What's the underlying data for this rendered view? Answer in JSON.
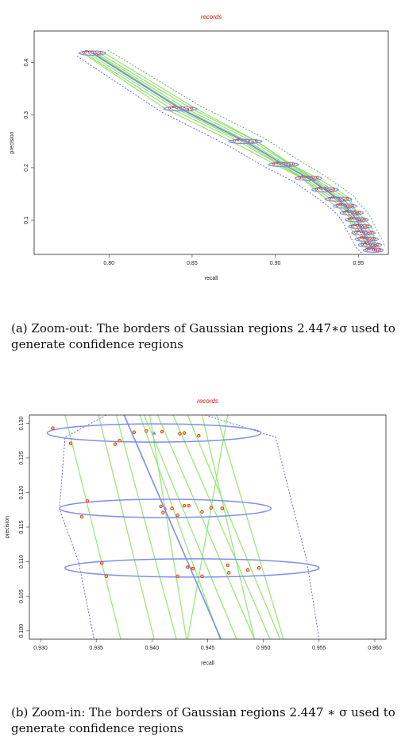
{
  "chart_data": [
    {
      "id": "zoom-out",
      "type": "line",
      "title": "records",
      "xlabel": "recall",
      "ylabel": "precision",
      "xlim": [
        0.755,
        0.968
      ],
      "ylim": [
        0.035,
        0.46
      ],
      "xticks": [
        "0.80",
        "0.85",
        "0.90",
        "0.95"
      ],
      "yticks": [
        "0.1",
        "0.2",
        "0.3",
        "0.4"
      ],
      "grid": false,
      "mean_curve": [
        [
          0.79,
          0.418
        ],
        [
          0.843,
          0.312
        ],
        [
          0.882,
          0.25
        ],
        [
          0.905,
          0.206
        ],
        [
          0.92,
          0.18
        ],
        [
          0.93,
          0.158
        ],
        [
          0.938,
          0.14
        ],
        [
          0.942,
          0.127
        ],
        [
          0.946,
          0.114
        ],
        [
          0.949,
          0.101
        ],
        [
          0.951,
          0.088
        ],
        [
          0.953,
          0.076
        ],
        [
          0.955,
          0.064
        ],
        [
          0.957,
          0.053
        ],
        [
          0.959,
          0.043
        ]
      ],
      "ellipse_half_width_recall": [
        0.008,
        0.01,
        0.01,
        0.009,
        0.008,
        0.008,
        0.008,
        0.007,
        0.007,
        0.007,
        0.007,
        0.007,
        0.007,
        0.007,
        0.006
      ]
    },
    {
      "id": "zoom-in",
      "type": "line",
      "title": "records",
      "xlabel": "recall",
      "ylabel": "precision",
      "xlim": [
        0.929,
        0.961
      ],
      "ylim": [
        0.0988,
        0.1312
      ],
      "xticks": [
        "0.930",
        "0.935",
        "0.940",
        "0.945",
        "0.950",
        "0.955",
        "0.960"
      ],
      "yticks": [
        "0.100",
        "0.105",
        "0.110",
        "0.115",
        "0.120",
        "0.125",
        "0.130"
      ],
      "grid": false,
      "ellipses": [
        {
          "center": [
            0.9402,
            0.1286
          ],
          "half_width": 0.0096
        },
        {
          "center": [
            0.9412,
            0.1177
          ],
          "half_width": 0.0095
        },
        {
          "center": [
            0.9436,
            0.1091
          ],
          "half_width": 0.0114
        }
      ],
      "mean_line": [
        [
          0.9375,
          0.1312
        ],
        [
          0.9462,
          0.0988
        ]
      ],
      "red_points": [
        [
          0.9311,
          0.1293
        ],
        [
          0.9327,
          0.1271
        ],
        [
          0.9371,
          0.1275
        ],
        [
          0.9367,
          0.127
        ],
        [
          0.9384,
          0.1287
        ],
        [
          0.9395,
          0.1289
        ],
        [
          0.9409,
          0.1288
        ],
        [
          0.9425,
          0.1285
        ],
        [
          0.9429,
          0.1286
        ],
        [
          0.9442,
          0.1282
        ],
        [
          0.9342,
          0.1188
        ],
        [
          0.9337,
          0.1165
        ],
        [
          0.9408,
          0.118
        ],
        [
          0.941,
          0.1171
        ],
        [
          0.9418,
          0.1177
        ],
        [
          0.9423,
          0.1167
        ],
        [
          0.9429,
          0.1181
        ],
        [
          0.9433,
          0.1181
        ],
        [
          0.9445,
          0.1172
        ],
        [
          0.9453,
          0.1178
        ],
        [
          0.9463,
          0.1177
        ],
        [
          0.9355,
          0.1098
        ],
        [
          0.9359,
          0.1079
        ],
        [
          0.9423,
          0.1079
        ],
        [
          0.9432,
          0.1092
        ],
        [
          0.9437,
          0.109
        ],
        [
          0.9445,
          0.1079
        ],
        [
          0.9468,
          0.1095
        ],
        [
          0.9469,
          0.1084
        ],
        [
          0.9486,
          0.1088
        ],
        [
          0.9496,
          0.1091
        ]
      ],
      "green_lines": [
        [
          [
            0.9322,
            0.1312
          ],
          [
            0.9372,
            0.0988
          ]
        ],
        [
          [
            0.9352,
            0.1312
          ],
          [
            0.9402,
            0.0988
          ]
        ],
        [
          [
            0.9368,
            0.1312
          ],
          [
            0.9422,
            0.0988
          ]
        ],
        [
          [
            0.9389,
            0.1312
          ],
          [
            0.9461,
            0.0988
          ]
        ],
        [
          [
            0.9393,
            0.1312
          ],
          [
            0.9476,
            0.0988
          ]
        ],
        [
          [
            0.9405,
            0.1312
          ],
          [
            0.9492,
            0.0988
          ]
        ],
        [
          [
            0.9419,
            0.1312
          ],
          [
            0.9506,
            0.0988
          ]
        ],
        [
          [
            0.9432,
            0.1312
          ],
          [
            0.9515,
            0.0988
          ]
        ],
        [
          [
            0.9445,
            0.1312
          ],
          [
            0.9492,
            0.0988
          ]
        ],
        [
          [
            0.9458,
            0.1312
          ],
          [
            0.9518,
            0.0988
          ]
        ],
        [
          [
            0.9398,
            0.1312
          ],
          [
            0.9431,
            0.0988
          ]
        ],
        [
          [
            0.9468,
            0.1312
          ],
          [
            0.9432,
            0.0988
          ]
        ]
      ],
      "confidence_left": [
        [
          0.9359,
          0.1312
        ],
        [
          0.9322,
          0.128
        ],
        [
          0.9317,
          0.1176
        ],
        [
          0.9334,
          0.1101
        ],
        [
          0.9348,
          0.0988
        ]
      ],
      "confidence_right": [
        [
          0.9448,
          0.1312
        ],
        [
          0.9511,
          0.128
        ],
        [
          0.9527,
          0.1176
        ],
        [
          0.9539,
          0.1101
        ],
        [
          0.955,
          0.0988
        ]
      ]
    }
  ],
  "captions": {
    "a": "(a) Zoom-out: The borders of Gaussian regions 2.447∗σ used to generate confidence regions",
    "b": "(b) Zoom-in: The borders of Gaussian regions 2.447 ∗ σ used to generate confidence regions"
  }
}
